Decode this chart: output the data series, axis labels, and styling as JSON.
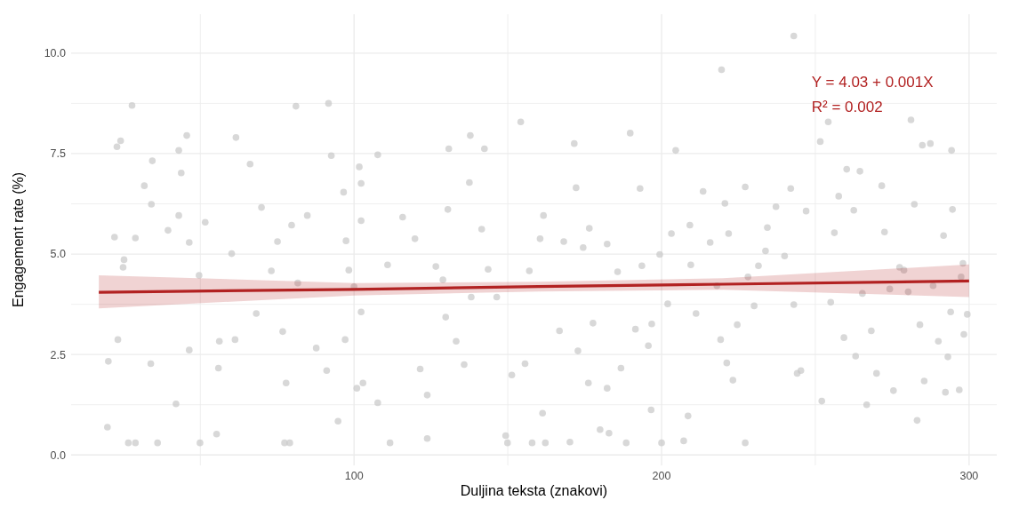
{
  "chart_data": {
    "type": "scatter",
    "xlabel": "Duljina teksta (znakovi)",
    "ylabel": "Engagement rate (%)",
    "xlim": [
      8,
      309
    ],
    "ylim": [
      -0.26,
      10.97
    ],
    "xticks": [
      {
        "value": 50,
        "label": null
      },
      100,
      {
        "value": 150,
        "label": null
      },
      200,
      {
        "value": 250,
        "label": null
      },
      300
    ],
    "yticks": [
      {
        "value": 0,
        "label": "0.0"
      },
      {
        "value": 1.25,
        "label": null
      },
      {
        "value": 2.5,
        "label": "2.5"
      },
      {
        "value": 3.75,
        "label": null
      },
      {
        "value": 5,
        "label": "5.0"
      },
      {
        "value": 6.25,
        "label": null
      },
      {
        "value": 7.5,
        "label": "7.5"
      },
      {
        "value": 8.75,
        "label": null
      },
      {
        "value": 10,
        "label": "10.0"
      }
    ],
    "grid": true,
    "annotations": [
      "Y = 4.03 + 0.001X",
      "R² = 0.002"
    ],
    "series": [
      {
        "marker": "circle",
        "color": "#c8c8c8",
        "x": [
          19.8,
          20.1,
          22.1,
          22.9,
          24.1,
          23.2,
          24.9,
          25.2,
          26.6,
          27.8,
          28.9,
          28.9,
          31.8,
          34.1,
          34.4,
          33.9,
          36.1,
          39.5,
          42.1,
          43.0,
          43.8,
          43.0,
          45.6,
          46.4,
          46.4,
          49.6,
          49.9,
          51.6,
          55.3,
          55.9,
          56.2,
          60.2,
          61.6,
          61.3,
          66.2,
          68.2,
          69.9,
          73.1,
          75.1,
          76.8,
          77.4,
          79.1,
          77.9,
          79.7,
          81.1,
          81.7,
          84.8,
          87.7,
          91.1,
          91.7,
          92.6,
          94.8,
          96.6,
          97.4,
          98.3,
          97.1,
          100,
          100.9,
          101.7,
          102.3,
          102.3,
          102.3,
          102.9,
          107.7,
          107.7,
          110.9,
          111.7,
          115.8,
          119.8,
          121.5,
          123.8,
          123.8,
          126.6,
          128.9,
          130.5,
          130.8,
          129.8,
          133.2,
          135.8,
          137.5,
          137.8,
          138.1,
          141.5,
          142.4,
          143.6,
          146.4,
          149.3,
          149.9,
          151.3,
          154.2,
          155.6,
          157.0,
          157.9,
          160.5,
          161.6,
          161.3,
          162.2,
          166.8,
          168.2,
          170.2,
          171.6,
          172.2,
          172.8,
          174.5,
          176.2,
          176.5,
          177.7,
          180,
          182.3,
          182.3,
          182.9,
          185.7,
          186.8,
          188.5,
          189.8,
          191.5,
          193.0,
          193.6,
          195.7,
          196.6,
          196.8,
          199.4,
          200,
          202,
          203.2,
          204.6,
          207.2,
          208.6,
          209.2,
          209.5,
          211.2,
          213.5,
          215.8,
          218,
          219.2,
          219.5,
          220.6,
          221.2,
          221.8,
          223.2,
          224.6,
          227.2,
          227.2,
          228.1,
          230.1,
          231.5,
          233.8,
          234.4,
          237.2,
          240,
          242,
          244.1,
          243,
          243,
          245.3,
          247,
          251.6,
          252.1,
          254.2,
          255,
          256.2,
          257.6,
          259.3,
          260.2,
          262.5,
          263.1,
          264.5,
          265.3,
          266.7,
          268.2,
          269.9,
          271.6,
          272.5,
          274.2,
          275.4,
          277.4,
          278.8,
          280.2,
          281.1,
          282.2,
          283.1,
          284,
          284.8,
          285.4,
          287.4,
          288.3,
          290,
          291.7,
          292.3,
          293.1,
          294,
          294.3,
          294.6,
          296.8,
          297.4,
          298,
          298.3,
          299.4
        ],
        "values": [
          0.69,
          2.33,
          5.42,
          7.67,
          7.82,
          2.87,
          4.67,
          4.86,
          0.3,
          8.7,
          5.4,
          0.3,
          6.7,
          6.24,
          7.32,
          2.27,
          0.3,
          5.59,
          1.27,
          7.58,
          7.02,
          5.96,
          7.95,
          2.61,
          5.29,
          4.47,
          0.3,
          5.79,
          0.52,
          2.16,
          2.83,
          5.01,
          7.9,
          2.87,
          7.24,
          3.52,
          6.16,
          4.58,
          5.31,
          3.07,
          0.3,
          0.3,
          1.79,
          5.72,
          8.68,
          4.28,
          5.96,
          2.66,
          2.1,
          8.75,
          7.45,
          0.84,
          6.54,
          5.33,
          4.6,
          2.87,
          4.19,
          1.66,
          7.17,
          3.56,
          6.76,
          5.83,
          1.79,
          7.47,
          1.3,
          4.73,
          0.3,
          5.92,
          5.38,
          2.14,
          1.49,
          0.41,
          4.69,
          4.36,
          6.11,
          7.62,
          3.43,
          2.83,
          2.25,
          6.78,
          7.95,
          3.93,
          5.62,
          7.62,
          4.62,
          3.93,
          0.48,
          0.3,
          1.99,
          8.29,
          2.27,
          4.58,
          0.3,
          5.38,
          5.96,
          1.04,
          0.3,
          3.09,
          5.31,
          0.32,
          7.75,
          6.65,
          2.59,
          5.16,
          1.79,
          5.64,
          3.28,
          0.63,
          1.66,
          5.25,
          0.54,
          4.56,
          2.16,
          0.3,
          8.01,
          3.13,
          6.63,
          4.71,
          2.72,
          1.12,
          3.26,
          4.99,
          0.3,
          3.76,
          5.51,
          7.58,
          0.35,
          0.97,
          5.72,
          4.73,
          3.52,
          6.56,
          5.29,
          4.21,
          2.87,
          9.59,
          6.26,
          2.29,
          5.51,
          1.86,
          3.24,
          6.67,
          0.3,
          4.43,
          3.71,
          4.71,
          5.08,
          5.66,
          6.18,
          4.95,
          6.63,
          2.03,
          3.74,
          10.43,
          2.1,
          6.07,
          7.8,
          1.34,
          8.29,
          3.8,
          5.53,
          6.44,
          2.92,
          7.11,
          6.09,
          2.46,
          7.06,
          4.02,
          1.25,
          3.09,
          2.03,
          6.7,
          5.55,
          4.13,
          1.6,
          4.67,
          4.6,
          4.06,
          8.34,
          6.24,
          0.86,
          3.24,
          7.71,
          1.84,
          7.75,
          4.21,
          2.83,
          5.46,
          1.56,
          2.44,
          3.56,
          7.58,
          6.11,
          1.62,
          4.43,
          4.77,
          3.0,
          3.5
        ]
      },
      {
        "type": "line",
        "color": "#b22222",
        "x": [
          17,
          100,
          160,
          220,
          300
        ],
        "values": [
          4.05,
          4.12,
          4.19,
          4.25,
          4.33
        ],
        "lower": [
          3.65,
          3.97,
          4.07,
          4.11,
          3.93
        ],
        "upper": [
          4.47,
          4.28,
          4.31,
          4.4,
          4.74
        ]
      }
    ]
  }
}
